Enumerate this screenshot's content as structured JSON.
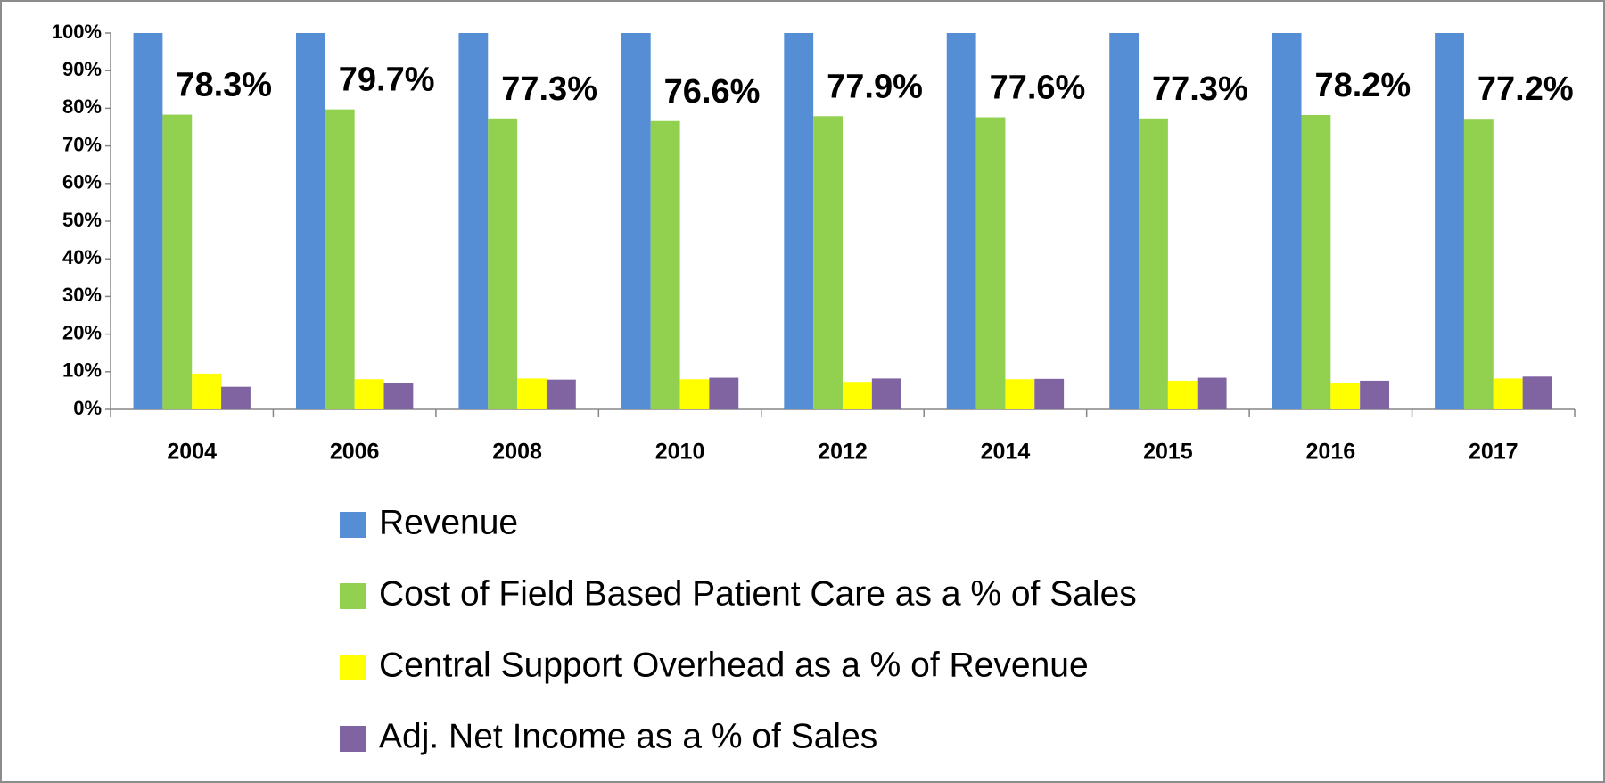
{
  "chart_data": {
    "type": "bar",
    "categories": [
      "2004",
      "2006",
      "2008",
      "2010",
      "2012",
      "2014",
      "2015",
      "2016",
      "2017"
    ],
    "series": [
      {
        "name": "Revenue",
        "color": "#558ed5",
        "values": [
          100,
          100,
          100,
          100,
          100,
          100,
          100,
          100,
          100
        ]
      },
      {
        "name": "Cost of Field Based Patient Care as a % of Sales",
        "color": "#92d050",
        "values": [
          78.3,
          79.7,
          77.3,
          76.6,
          77.9,
          77.6,
          77.3,
          78.2,
          77.2
        ],
        "value_labels": [
          "78.3%",
          "79.7%",
          "77.3%",
          "76.6%",
          "77.9%",
          "77.6%",
          "77.3%",
          "78.2%",
          "77.2%"
        ]
      },
      {
        "name": "Central Support Overhead as a % of Revenue",
        "color": "#ffff00",
        "values": [
          9.5,
          8,
          8.2,
          8,
          7.3,
          8,
          7.6,
          7,
          8.2
        ]
      },
      {
        "name": "Adj. Net Income as a % of Sales",
        "color": "#8064a2",
        "values": [
          6,
          7,
          7.9,
          8.4,
          8.2,
          8.1,
          8.4,
          7.6,
          8.7
        ]
      }
    ],
    "ylim": [
      0,
      100
    ],
    "yticks": [
      {
        "value": 0,
        "label": "0%"
      },
      {
        "value": 10,
        "label": "10%"
      },
      {
        "value": 20,
        "label": "20%"
      },
      {
        "value": 30,
        "label": "30%"
      },
      {
        "value": 40,
        "label": "40%"
      },
      {
        "value": 50,
        "label": "50%"
      },
      {
        "value": 60,
        "label": "60%"
      },
      {
        "value": 70,
        "label": "70%"
      },
      {
        "value": 80,
        "label": "80%"
      },
      {
        "value": 90,
        "label": "90%"
      },
      {
        "value": 100,
        "label": "100%"
      }
    ],
    "legend": "bottom"
  }
}
